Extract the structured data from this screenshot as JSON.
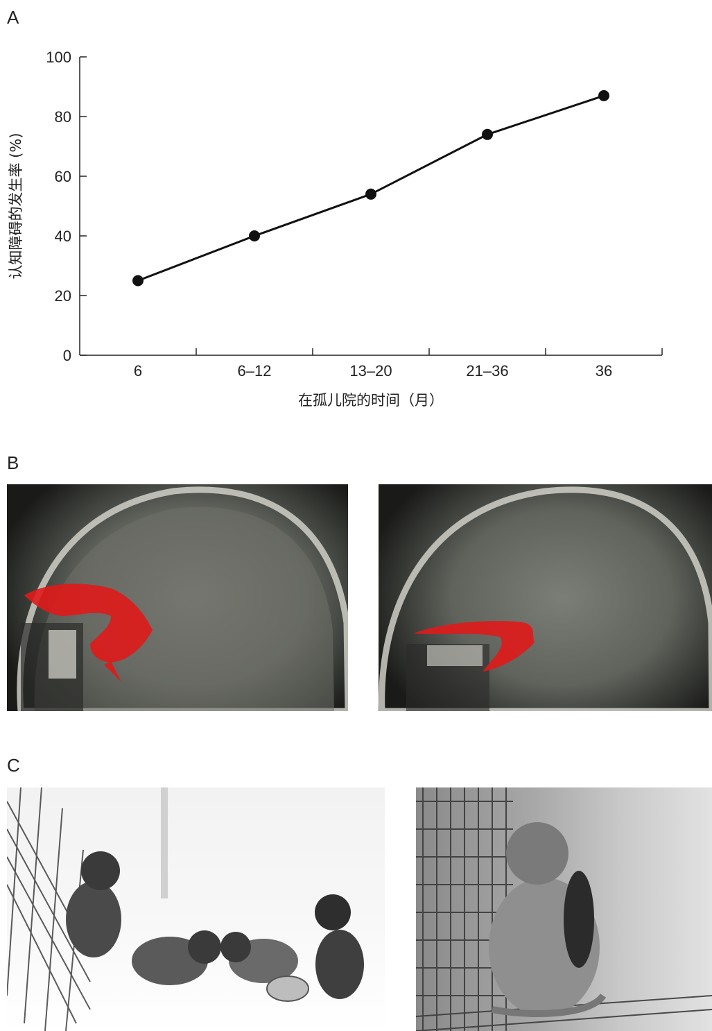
{
  "panels": {
    "a": "A",
    "b": "B",
    "c": "C"
  },
  "chart_data": {
    "type": "line",
    "categories": [
      "6",
      "6–12",
      "13–20",
      "21–36",
      "36"
    ],
    "values": [
      25,
      40,
      54,
      74,
      87
    ],
    "xlabel": "在孤儿院的时间（月）",
    "ylabel": "认知障碍的发生率 (%)",
    "ylim": [
      0,
      100
    ],
    "yticks": [
      0,
      20,
      40,
      60,
      80,
      100
    ],
    "grid": false,
    "line_color": "#111111"
  },
  "images": {
    "mri_left": "brain-mri-sagittal-red-tract",
    "mri_right": "brain-mri-sagittal-red-tract",
    "photo_left": "infant-monkeys-group",
    "photo_right": "isolated-monkey-in-cage",
    "highlight_color": "#e01a1a"
  }
}
